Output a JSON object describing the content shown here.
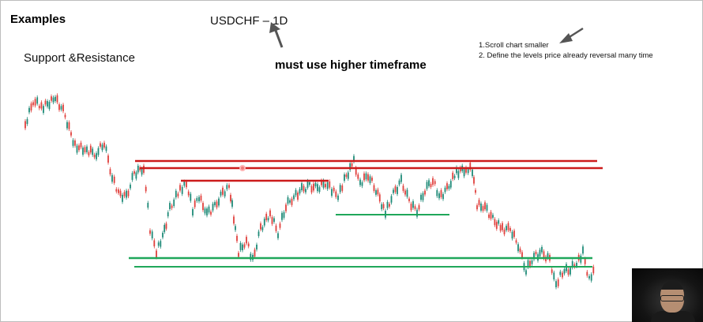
{
  "slide": {
    "title": "Examples",
    "subtitle": "Support &Resistance",
    "symbol_label": "USDCHF – 1D",
    "note": "must use higher timeframe",
    "steps": [
      "1.Scroll chart smaller",
      "2. Define the levels price already reversal many time"
    ]
  },
  "colors": {
    "resistance": "#cc1b1b",
    "support": "#1fa75a",
    "candle_up": "#1f8a78",
    "candle_down": "#e0403c",
    "arrow": "#555555"
  },
  "webcam": {
    "icon": "webcam-presenter-feed"
  }
}
